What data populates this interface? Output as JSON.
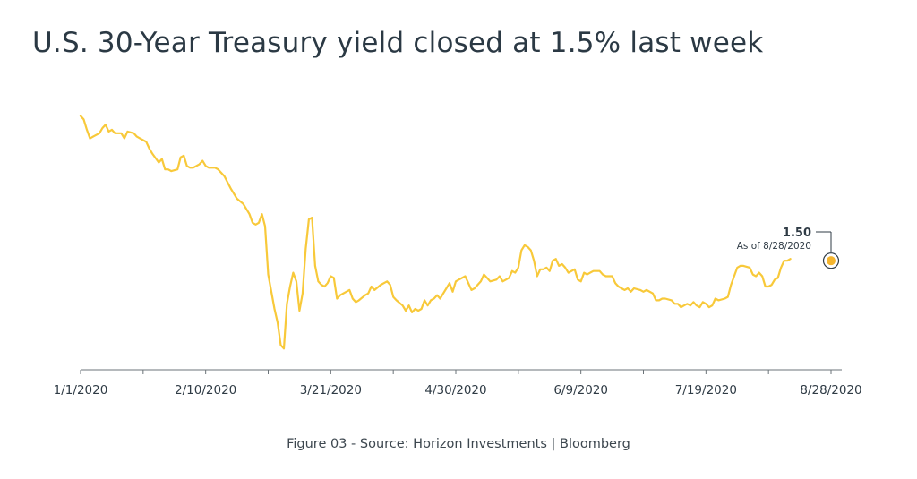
{
  "title": "U.S. 30-Year Treasury yield closed at 1.5% last week",
  "caption": "Figure 03 - Source: Horizon Investments | Bloomberg",
  "colors": {
    "line": "#F8C93A",
    "axis": "#6b7378",
    "text": "#2f3b45",
    "marker": "#F5B52E"
  },
  "chart_data": {
    "type": "line",
    "title": "U.S. 30-Year Treasury yield closed at 1.5% last week",
    "xlabel": "",
    "ylabel": "",
    "grid": false,
    "x_tick_labels": [
      "1/1/2020",
      "2/10/2020",
      "3/21/2020",
      "4/30/2020",
      "6/9/2020",
      "7/19/2020",
      "8/28/2020"
    ],
    "x_domain_days": [
      0,
      244
    ],
    "ylim": [
      0.95,
      2.4
    ],
    "annotation": {
      "value": "1.50",
      "label": "As of 8/28/2020",
      "day": 240,
      "y": 1.5
    },
    "series": [
      {
        "values": [
          [
            0,
            2.34
          ],
          [
            1,
            2.32
          ],
          [
            2,
            2.26
          ],
          [
            3,
            2.21
          ],
          [
            4,
            2.22
          ],
          [
            6,
            2.24
          ],
          [
            7,
            2.27
          ],
          [
            8,
            2.29
          ],
          [
            9,
            2.25
          ],
          [
            10,
            2.26
          ],
          [
            11,
            2.24
          ],
          [
            13,
            2.24
          ],
          [
            14,
            2.21
          ],
          [
            15,
            2.25
          ],
          [
            17,
            2.24
          ],
          [
            18,
            2.22
          ],
          [
            19,
            2.21
          ],
          [
            21,
            2.19
          ],
          [
            22,
            2.15
          ],
          [
            23,
            2.12
          ],
          [
            25,
            2.07
          ],
          [
            26,
            2.09
          ],
          [
            27,
            2.03
          ],
          [
            28,
            2.03
          ],
          [
            29,
            2.02
          ],
          [
            31,
            2.03
          ],
          [
            32,
            2.1
          ],
          [
            33,
            2.11
          ],
          [
            34,
            2.05
          ],
          [
            35,
            2.04
          ],
          [
            36,
            2.04
          ],
          [
            38,
            2.06
          ],
          [
            39,
            2.08
          ],
          [
            40,
            2.05
          ],
          [
            41,
            2.04
          ],
          [
            43,
            2.04
          ],
          [
            44,
            2.03
          ],
          [
            46,
            1.99
          ],
          [
            48,
            1.92
          ],
          [
            50,
            1.86
          ],
          [
            52,
            1.83
          ],
          [
            54,
            1.77
          ],
          [
            55,
            1.72
          ],
          [
            56,
            1.71
          ],
          [
            57,
            1.72
          ],
          [
            58,
            1.77
          ],
          [
            59,
            1.7
          ],
          [
            60,
            1.42
          ],
          [
            62,
            1.22
          ],
          [
            63,
            1.14
          ],
          [
            64,
            1.01
          ],
          [
            65,
            0.99
          ],
          [
            66,
            1.25
          ],
          [
            67,
            1.35
          ],
          [
            68,
            1.43
          ],
          [
            69,
            1.38
          ],
          [
            70,
            1.21
          ],
          [
            71,
            1.31
          ],
          [
            72,
            1.57
          ],
          [
            73,
            1.74
          ],
          [
            74,
            1.75
          ],
          [
            75,
            1.47
          ],
          [
            76,
            1.38
          ],
          [
            77,
            1.36
          ],
          [
            78,
            1.35
          ],
          [
            79,
            1.37
          ],
          [
            80,
            1.41
          ],
          [
            81,
            1.4
          ],
          [
            82,
            1.28
          ],
          [
            83,
            1.3
          ],
          [
            85,
            1.32
          ],
          [
            86,
            1.33
          ],
          [
            87,
            1.28
          ],
          [
            88,
            1.26
          ],
          [
            89,
            1.27
          ],
          [
            91,
            1.3
          ],
          [
            92,
            1.31
          ],
          [
            93,
            1.35
          ],
          [
            94,
            1.33
          ],
          [
            96,
            1.36
          ],
          [
            97,
            1.37
          ],
          [
            98,
            1.38
          ],
          [
            99,
            1.36
          ],
          [
            100,
            1.29
          ],
          [
            101,
            1.27
          ],
          [
            103,
            1.24
          ],
          [
            104,
            1.21
          ],
          [
            105,
            1.24
          ],
          [
            106,
            1.2
          ],
          [
            107,
            1.22
          ],
          [
            108,
            1.21
          ],
          [
            109,
            1.22
          ],
          [
            110,
            1.27
          ],
          [
            111,
            1.24
          ],
          [
            112,
            1.27
          ],
          [
            113,
            1.28
          ],
          [
            114,
            1.3
          ],
          [
            115,
            1.28
          ],
          [
            116,
            1.31
          ],
          [
            117,
            1.34
          ],
          [
            118,
            1.37
          ],
          [
            119,
            1.32
          ],
          [
            120,
            1.38
          ],
          [
            121,
            1.39
          ],
          [
            122,
            1.4
          ],
          [
            123,
            1.41
          ],
          [
            124,
            1.37
          ],
          [
            125,
            1.33
          ],
          [
            126,
            1.34
          ],
          [
            127,
            1.36
          ],
          [
            128,
            1.38
          ],
          [
            129,
            1.42
          ],
          [
            130,
            1.4
          ],
          [
            131,
            1.38
          ],
          [
            133,
            1.39
          ],
          [
            134,
            1.41
          ],
          [
            135,
            1.38
          ],
          [
            137,
            1.4
          ],
          [
            138,
            1.44
          ],
          [
            139,
            1.43
          ],
          [
            140,
            1.46
          ],
          [
            141,
            1.56
          ],
          [
            142,
            1.59
          ],
          [
            143,
            1.58
          ],
          [
            144,
            1.56
          ],
          [
            145,
            1.5
          ],
          [
            146,
            1.41
          ],
          [
            147,
            1.45
          ],
          [
            148,
            1.45
          ],
          [
            149,
            1.46
          ],
          [
            150,
            1.44
          ],
          [
            151,
            1.5
          ],
          [
            152,
            1.51
          ],
          [
            153,
            1.47
          ],
          [
            154,
            1.48
          ],
          [
            155,
            1.46
          ],
          [
            156,
            1.43
          ],
          [
            158,
            1.45
          ],
          [
            159,
            1.39
          ],
          [
            160,
            1.38
          ],
          [
            161,
            1.43
          ],
          [
            162,
            1.42
          ],
          [
            163,
            1.43
          ],
          [
            164,
            1.44
          ],
          [
            166,
            1.44
          ],
          [
            167,
            1.42
          ],
          [
            168,
            1.41
          ],
          [
            170,
            1.41
          ],
          [
            171,
            1.37
          ],
          [
            172,
            1.35
          ],
          [
            173,
            1.34
          ],
          [
            174,
            1.33
          ],
          [
            175,
            1.34
          ],
          [
            176,
            1.32
          ],
          [
            177,
            1.34
          ],
          [
            179,
            1.33
          ],
          [
            180,
            1.32
          ],
          [
            181,
            1.33
          ],
          [
            183,
            1.31
          ],
          [
            184,
            1.27
          ],
          [
            185,
            1.27
          ],
          [
            186,
            1.28
          ],
          [
            187,
            1.28
          ],
          [
            189,
            1.27
          ],
          [
            190,
            1.25
          ],
          [
            191,
            1.25
          ],
          [
            192,
            1.23
          ],
          [
            193,
            1.24
          ],
          [
            194,
            1.25
          ],
          [
            195,
            1.24
          ],
          [
            196,
            1.26
          ],
          [
            197,
            1.24
          ],
          [
            198,
            1.23
          ],
          [
            199,
            1.26
          ],
          [
            200,
            1.25
          ],
          [
            201,
            1.23
          ],
          [
            202,
            1.24
          ],
          [
            203,
            1.28
          ],
          [
            204,
            1.27
          ],
          [
            206,
            1.28
          ],
          [
            207,
            1.29
          ],
          [
            208,
            1.36
          ],
          [
            209,
            1.41
          ],
          [
            210,
            1.46
          ],
          [
            211,
            1.47
          ],
          [
            212,
            1.47
          ],
          [
            214,
            1.46
          ],
          [
            215,
            1.42
          ],
          [
            216,
            1.41
          ],
          [
            217,
            1.43
          ],
          [
            218,
            1.41
          ],
          [
            219,
            1.35
          ],
          [
            220,
            1.35
          ],
          [
            221,
            1.36
          ],
          [
            222,
            1.39
          ],
          [
            223,
            1.4
          ],
          [
            224,
            1.46
          ],
          [
            225,
            1.5
          ],
          [
            226,
            1.5
          ],
          [
            227,
            1.51
          ]
        ]
      }
    ]
  }
}
